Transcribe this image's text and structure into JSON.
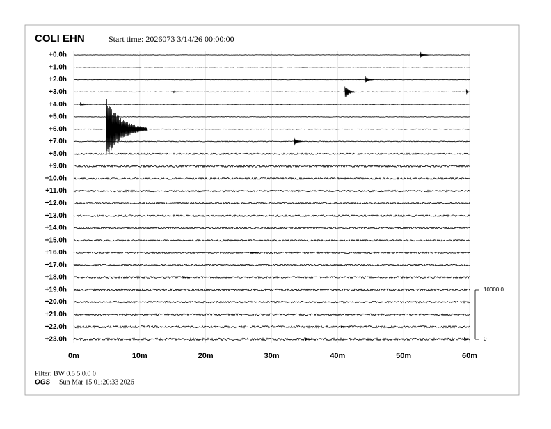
{
  "chart_data": {
    "type": "helicorder",
    "title": "COLI EHN",
    "subtitle": "Start time: 2026073  3/14/26 00:00:00",
    "categories": [
      "+0.0h",
      "+1.0h",
      "+2.0h",
      "+3.0h",
      "+4.0h",
      "+5.0h",
      "+6.0h",
      "+7.0h",
      "+8.0h",
      "+9.0h",
      "+10.0h",
      "+11.0h",
      "+12.0h",
      "+13.0h",
      "+14.0h",
      "+15.0h",
      "+16.0h",
      "+17.0h",
      "+18.0h",
      "+19.0h",
      "+20.0h",
      "+21.0h",
      "+22.0h",
      "+23.0h"
    ],
    "xlim": [
      0,
      60
    ],
    "xticks": [
      {
        "value": 0,
        "label": "0m"
      },
      {
        "value": 10,
        "label": "10m"
      },
      {
        "value": 20,
        "label": "20m"
      },
      {
        "value": 30,
        "label": "30m"
      },
      {
        "value": 40,
        "label": "40m"
      },
      {
        "value": 50,
        "label": "50m"
      },
      {
        "value": 60,
        "label": "60m"
      }
    ],
    "scale_ticks": [
      {
        "value": 10000,
        "label": "10000.0"
      },
      {
        "value": 0,
        "label": "0"
      }
    ],
    "noise": [
      40,
      40,
      40,
      50,
      50,
      50,
      60,
      80,
      150,
      200,
      180,
      170,
      170,
      180,
      170,
      160,
      160,
      170,
      200,
      220,
      170,
      180,
      220,
      250
    ],
    "events": [
      {
        "row": 0,
        "x": 52.5,
        "amplitude": 700
      },
      {
        "row": 2,
        "x": 44.2,
        "amplitude": 700
      },
      {
        "row": 3,
        "x": 41.1,
        "amplitude": 1700
      },
      {
        "row": 3,
        "x": 59.5,
        "amplitude": 600
      },
      {
        "row": 3,
        "x": 15,
        "amplitude": 200
      },
      {
        "row": 4,
        "x": 1,
        "amplitude": 400
      },
      {
        "row": 6,
        "x": 4.9,
        "amplitude": 7000
      },
      {
        "row": 7,
        "x": 33.4,
        "amplitude": 900
      },
      {
        "row": 16,
        "x": 26.8,
        "amplitude": 250
      },
      {
        "row": 18,
        "x": 16.5,
        "amplitude": 250
      },
      {
        "row": 22,
        "x": 40.5,
        "amplitude": 350
      },
      {
        "row": 23,
        "x": 35,
        "amplitude": 500
      },
      {
        "row": 23,
        "x": 59.2,
        "amplitude": 450
      }
    ],
    "color": "#000000"
  },
  "footer": {
    "filter": "Filter: BW 0.5 5 0.0 0",
    "org": "OGS",
    "timestamp": "Sun Mar 15 01:20:33 2026"
  }
}
